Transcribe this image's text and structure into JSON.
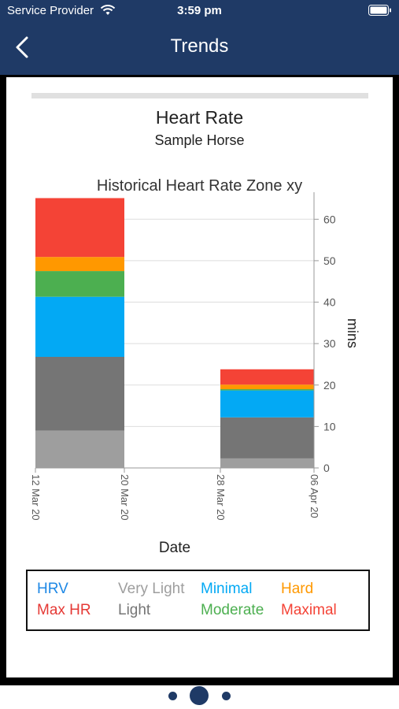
{
  "status_bar": {
    "carrier": "Service Provider",
    "time": "3:59 pm"
  },
  "nav": {
    "title": "Trends"
  },
  "header": {
    "title": "Heart Rate",
    "subtitle": "Sample Horse"
  },
  "colors": {
    "nav_bg": "#1f3a66",
    "very_light": "#9e9e9e",
    "light": "#757575",
    "minimal": "#03a9f4",
    "moderate": "#4caf50",
    "hard": "#ff9800",
    "maximal": "#f44336"
  },
  "chart_data": {
    "type": "bar",
    "stacked": true,
    "title": "Historical Heart Rate Zone xy",
    "xlabel": "Date",
    "ylabel": "mins",
    "ylim": [
      0,
      65
    ],
    "y_ticks": [
      0,
      10,
      20,
      30,
      40,
      50,
      60
    ],
    "y_axis_side": "right",
    "x_ticks": [
      "12 Mar 20",
      "20 Mar 20",
      "28 Mar 20",
      "06 Apr 20"
    ],
    "grid": true,
    "bars": [
      {
        "start": "12 Mar 20",
        "end": "20 Mar 20",
        "segments": [
          {
            "series": "Very Light",
            "value": 9
          },
          {
            "series": "Light",
            "value": 17.8
          },
          {
            "series": "Minimal",
            "value": 14.5
          },
          {
            "series": "Moderate",
            "value": 6.2
          },
          {
            "series": "Hard",
            "value": 3.4
          },
          {
            "series": "Maximal",
            "value": 14.2
          }
        ]
      },
      {
        "start": "28 Mar 20",
        "end": "06 Apr 20",
        "segments": [
          {
            "series": "Very Light",
            "value": 2.3
          },
          {
            "series": "Light",
            "value": 9.9
          },
          {
            "series": "Minimal",
            "value": 6.5
          },
          {
            "series": "Moderate",
            "value": 0.3
          },
          {
            "series": "Hard",
            "value": 1.1
          },
          {
            "series": "Maximal",
            "value": 3.7
          }
        ]
      }
    ],
    "legend": [
      {
        "label": "HRV",
        "color": "#1e88e5"
      },
      {
        "label": "Very Light",
        "color": "#9e9e9e"
      },
      {
        "label": "Minimal",
        "color": "#03a9f4"
      },
      {
        "label": "Hard",
        "color": "#ff9800"
      },
      {
        "label": "Max HR",
        "color": "#e53935"
      },
      {
        "label": "Light",
        "color": "#757575"
      },
      {
        "label": "Moderate",
        "color": "#4caf50"
      },
      {
        "label": "Maximal",
        "color": "#f44336"
      }
    ],
    "legend_placement": "bottom"
  },
  "pager": {
    "pages": 3,
    "current": 2
  }
}
